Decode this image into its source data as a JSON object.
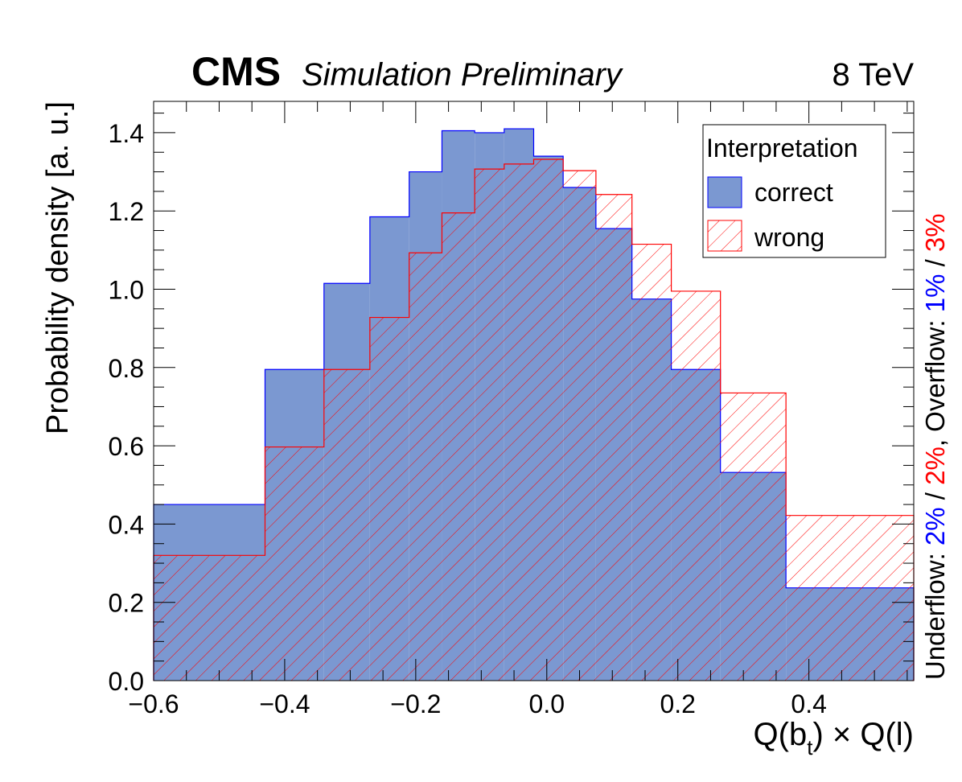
{
  "header": {
    "experiment": "CMS",
    "status": "Simulation Preliminary",
    "energy": "8 TeV"
  },
  "flow_note": {
    "underflow_label": "Underflow:",
    "underflow_correct": "2%",
    "underflow_wrong": "2%",
    "overflow_label": "Overflow:",
    "overflow_correct": "1%",
    "overflow_wrong": "3%",
    "separator": "/",
    "comma": ","
  },
  "colors": {
    "correct_fill": "#7b98d1",
    "correct_line": "#0000ff",
    "wrong_line": "#ff0000",
    "flow_correct": "#0000ff",
    "flow_wrong": "#ff0000"
  },
  "chart_data": {
    "type": "histogram",
    "xlabel_main": "Q(b",
    "xlabel_sub": "t",
    "xlabel_tail": ") × Q(l)",
    "ylabel": "Probability density [a. u.]",
    "xlim": [
      -0.6,
      0.56
    ],
    "ylim": [
      0,
      1.48
    ],
    "x_ticks": [
      -0.6,
      -0.4,
      -0.2,
      0.0,
      0.2,
      0.4
    ],
    "x_tick_labels": [
      "−0.6",
      "−0.4",
      "−0.2",
      "0.0",
      "0.2",
      "0.4"
    ],
    "y_ticks": [
      0.0,
      0.2,
      0.4,
      0.6,
      0.8,
      1.0,
      1.2,
      1.4
    ],
    "y_tick_labels": [
      "0.0",
      "0.2",
      "0.4",
      "0.6",
      "0.8",
      "1.0",
      "1.2",
      "1.4"
    ],
    "bin_edges": [
      -0.6,
      -0.43,
      -0.34,
      -0.27,
      -0.21,
      -0.16,
      -0.11,
      -0.065,
      -0.02,
      0.025,
      0.075,
      0.13,
      0.19,
      0.265,
      0.365,
      0.56
    ],
    "series": [
      {
        "name": "correct",
        "values": [
          0.45,
          0.795,
          1.015,
          1.185,
          1.3,
          1.405,
          1.4,
          1.41,
          1.34,
          1.26,
          1.155,
          0.975,
          0.795,
          0.532,
          0.237
        ]
      },
      {
        "name": "wrong",
        "values": [
          0.32,
          0.597,
          0.795,
          0.928,
          1.093,
          1.195,
          1.307,
          1.32,
          1.332,
          1.303,
          1.242,
          1.115,
          0.995,
          0.735,
          0.422
        ]
      }
    ],
    "legend": {
      "title": "Interpretation",
      "entries": [
        "correct",
        "wrong"
      ],
      "placement": "top-right"
    },
    "grid": false
  }
}
